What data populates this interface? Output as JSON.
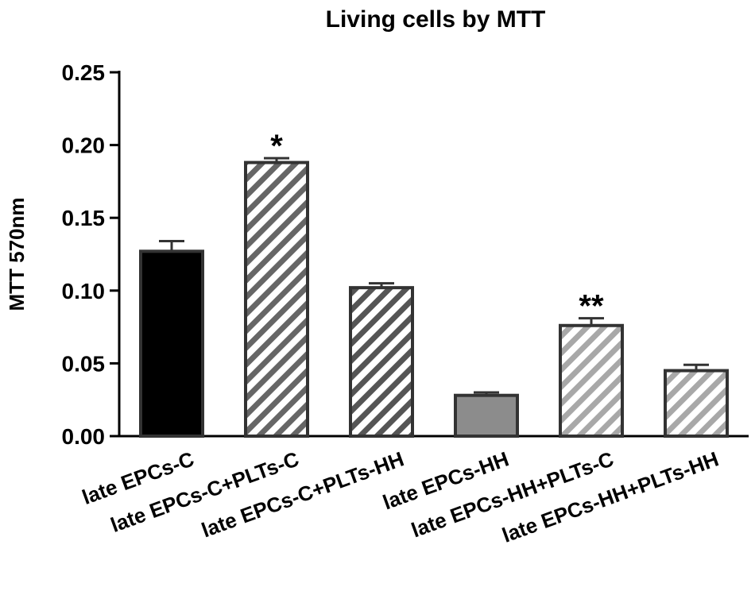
{
  "chart_data": {
    "type": "bar",
    "title": "Living cells by MTT",
    "xlabel": "",
    "ylabel": "MTT 570nm",
    "ylim": [
      0,
      0.25
    ],
    "yticks": [
      "0.00",
      "0.05",
      "0.10",
      "0.15",
      "0.20",
      "0.25"
    ],
    "categories": [
      "late EPCs-C",
      "late EPCs-C+PLTs-C",
      "late EPCs-C+PLTs-HH",
      "late EPCs-HH",
      "late EPCs-HH+PLTs-C",
      "late EPCs-HH+PLTs-HH"
    ],
    "values": [
      0.127,
      0.188,
      0.102,
      0.028,
      0.076,
      0.045
    ],
    "errors": [
      0.007,
      0.003,
      0.003,
      0.002,
      0.005,
      0.004
    ],
    "annotations": [
      "",
      "*",
      "",
      "",
      "**",
      ""
    ],
    "grid": false,
    "legend": "none",
    "bar_styles": [
      {
        "fill": "#000000",
        "hatch": false,
        "hatch_color": ""
      },
      {
        "fill": "#ffffff",
        "hatch": true,
        "hatch_color": "#666666"
      },
      {
        "fill": "#ffffff",
        "hatch": true,
        "hatch_color": "#555555"
      },
      {
        "fill": "#8c8c8c",
        "hatch": false,
        "hatch_color": ""
      },
      {
        "fill": "#ffffff",
        "hatch": true,
        "hatch_color": "#a8a8a8"
      },
      {
        "fill": "#ffffff",
        "hatch": true,
        "hatch_color": "#a8a8a8"
      }
    ],
    "colors": {
      "axis": "#000000",
      "bar_outline": "#333333"
    }
  }
}
